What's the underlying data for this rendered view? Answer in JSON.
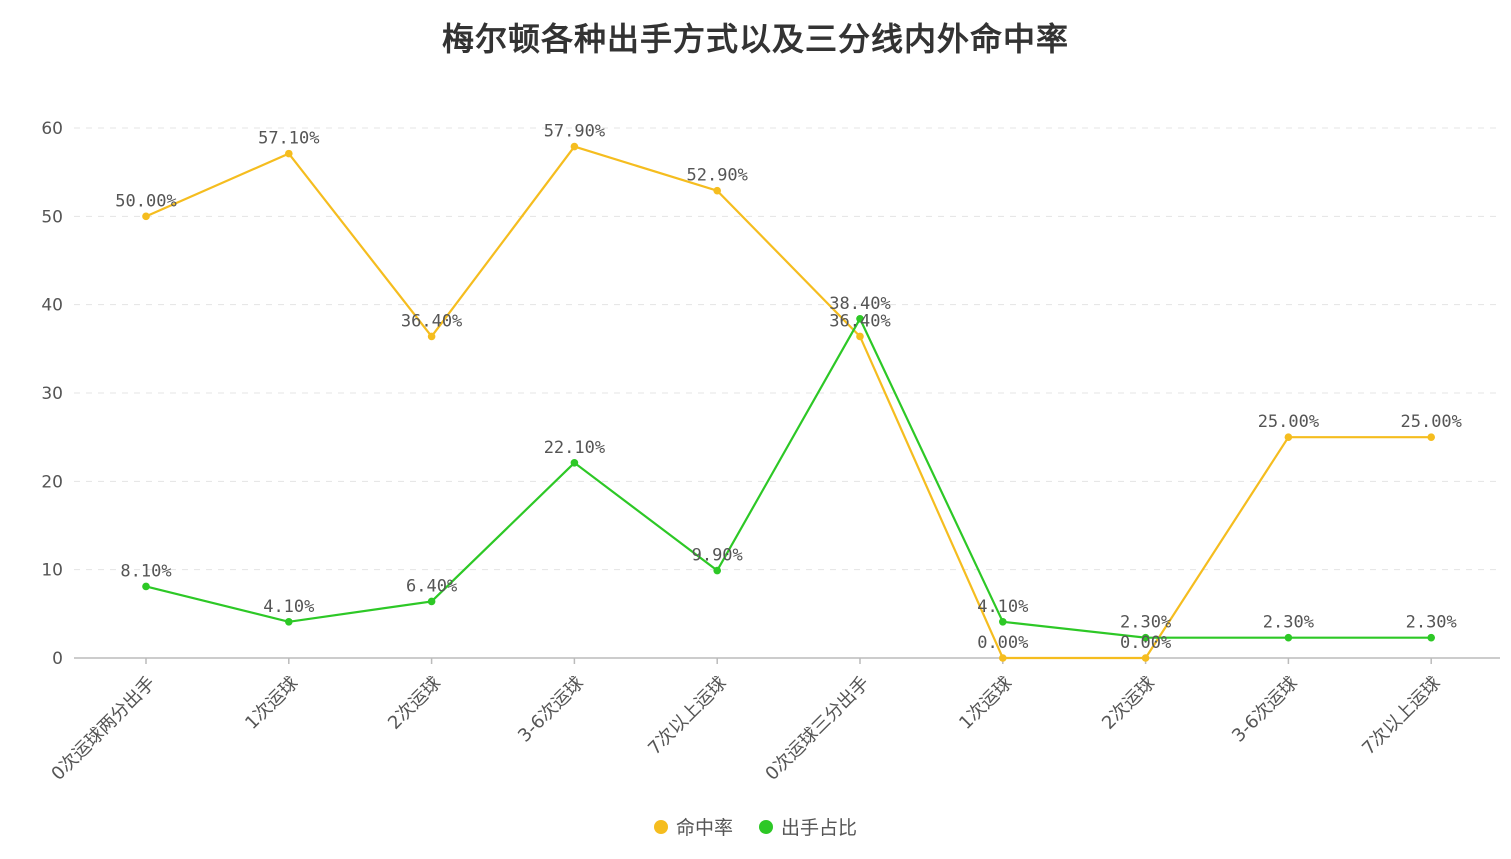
{
  "chart_data": {
    "type": "line",
    "title": "梅尔顿各种出手方式以及三分线内外命中率",
    "categories": [
      "0次运球两分出手",
      "1次运球",
      "2次运球",
      "3-6次运球",
      "7次以上运球",
      "0次运球三分出手",
      "1次运球",
      "2次运球",
      "3-6次运球",
      "7次以上运球"
    ],
    "ylim": [
      0,
      60
    ],
    "yticks": [
      0,
      10,
      20,
      30,
      40,
      50,
      60
    ],
    "grid": true,
    "legend_position": "bottom",
    "series": [
      {
        "name": "命中率",
        "color": "#F5BD1F",
        "values": [
          50.0,
          57.1,
          36.4,
          57.9,
          52.9,
          36.4,
          0.0,
          0.0,
          25.0,
          25.0
        ],
        "labels": [
          "50.00%",
          "57.10%",
          "36.40%",
          "57.90%",
          "52.90%",
          "36.40%",
          "0.00%",
          "0.00%",
          "25.00%",
          "25.00%"
        ]
      },
      {
        "name": "出手占比",
        "color": "#2DC826",
        "values": [
          8.1,
          4.1,
          6.4,
          22.1,
          9.9,
          38.4,
          4.1,
          2.3,
          2.3,
          2.3
        ],
        "labels": [
          "8.10%",
          "4.10%",
          "6.40%",
          "22.10%",
          "9.90%",
          "38.40%",
          "4.10%",
          "2.30%",
          "2.30%",
          "2.30%"
        ]
      }
    ]
  }
}
